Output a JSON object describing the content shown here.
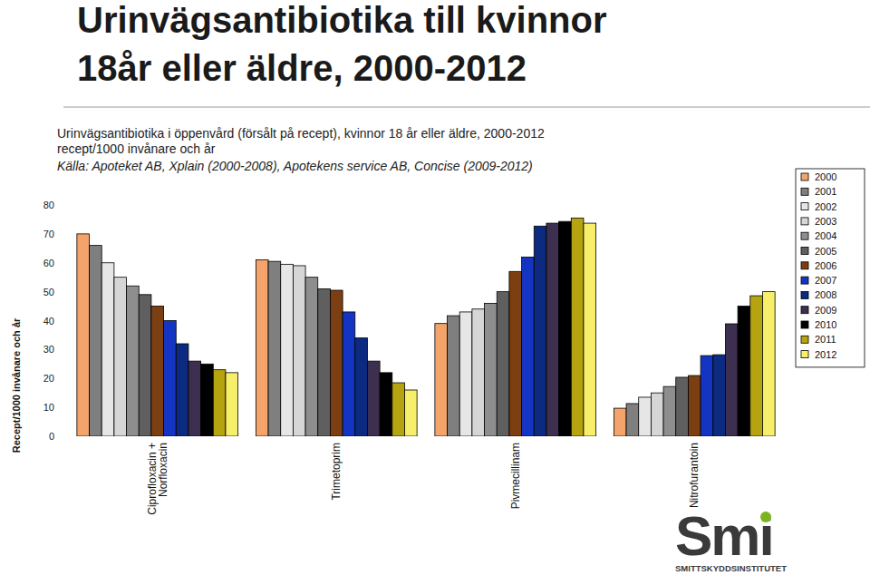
{
  "chart_data": {
    "type": "bar",
    "title": [
      "Urinvägsantibiotika till kvinnor",
      "18år eller äldre, 2000-2012"
    ],
    "subtitle": [
      "Urinvägsantibiotika i öppenvård (försålt på recept), kvinnor 18 år eller äldre, 2000-2012",
      "recept/1000 invånare och år"
    ],
    "source": "Källa: Apoteket AB, Xplain (2000-2008), Apotekens service AB, Concise (2009-2012)",
    "y_label": "Recept/1000 invånare och år",
    "logo": {
      "text": "Smi",
      "subtext": "SMITTSKYDDSINSTITUTET"
    },
    "categories": [
      "Ciprofloxacin + Norfloxacin",
      "Trimetoprim",
      "Pivmecillinam",
      "Nitrofurantoin"
    ],
    "series": [
      {
        "name": "2000",
        "color": "#f4a46b",
        "values": [
          70,
          61,
          39,
          9.7
        ]
      },
      {
        "name": "2001",
        "color": "#7f7f7f",
        "values": [
          66,
          60.5,
          41.7,
          11.3
        ]
      },
      {
        "name": "2002",
        "color": "#e6e6e6",
        "values": [
          60,
          59.5,
          43,
          13.5
        ]
      },
      {
        "name": "2003",
        "color": "#d6d6d6",
        "values": [
          55,
          59,
          44,
          15
        ]
      },
      {
        "name": "2004",
        "color": "#8e8e8e",
        "values": [
          52,
          55,
          46,
          17.2
        ]
      },
      {
        "name": "2005",
        "color": "#5f5f5f",
        "values": [
          49,
          51,
          50,
          20.4
        ]
      },
      {
        "name": "2006",
        "color": "#7b3f12",
        "values": [
          45,
          50.5,
          57,
          21
        ]
      },
      {
        "name": "2007",
        "color": "#1434c4",
        "values": [
          40,
          43,
          62,
          27.9
        ]
      },
      {
        "name": "2008",
        "color": "#0b2a80",
        "values": [
          32,
          34,
          72.7,
          28.2
        ]
      },
      {
        "name": "2009",
        "color": "#3c2f4f",
        "values": [
          26,
          26,
          73.7,
          38.9
        ]
      },
      {
        "name": "2010",
        "color": "#000000",
        "values": [
          25,
          22,
          74.3,
          45
        ]
      },
      {
        "name": "2011",
        "color": "#b5a40f",
        "values": [
          23,
          18.5,
          75.5,
          48.6
        ]
      },
      {
        "name": "2012",
        "color": "#f7ef6a",
        "values": [
          22,
          16,
          73.7,
          50
        ]
      }
    ],
    "ylim": [
      0,
      80
    ],
    "yticks": [
      0,
      10,
      20,
      30,
      40,
      50,
      60,
      70,
      80
    ],
    "grid": false,
    "legend": "right"
  }
}
